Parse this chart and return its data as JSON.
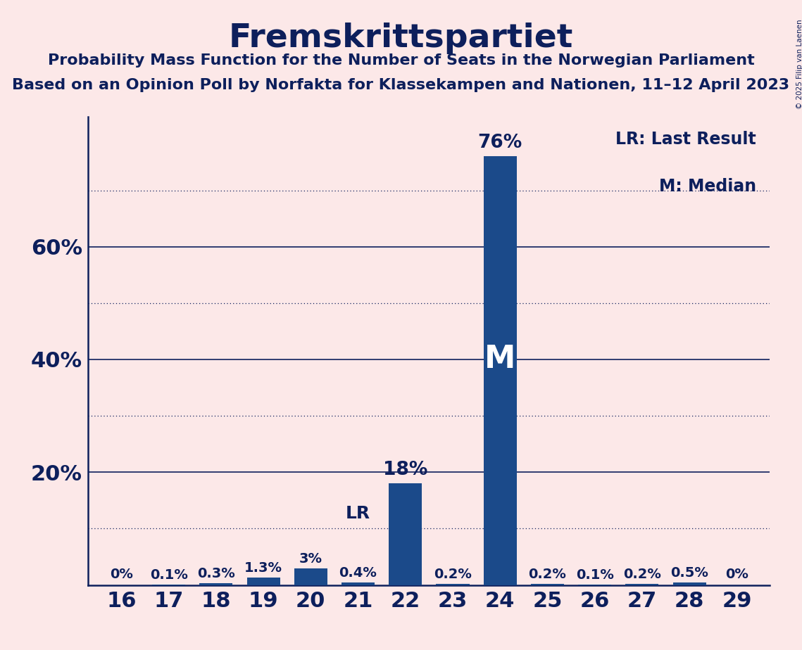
{
  "title": "Fremskrittspartiet",
  "subtitle1": "Probability Mass Function for the Number of Seats in the Norwegian Parliament",
  "subtitle2": "Based on an Opinion Poll by Norfakta for Klassekampen and Nationen, 11–12 April 2023",
  "copyright": "© 2025 Filip van Laenen",
  "seats": [
    16,
    17,
    18,
    19,
    20,
    21,
    22,
    23,
    24,
    25,
    26,
    27,
    28,
    29
  ],
  "probabilities": [
    0.0,
    0.1,
    0.3,
    1.3,
    3.0,
    0.4,
    18.0,
    0.2,
    76.0,
    0.2,
    0.1,
    0.2,
    0.5,
    0.0
  ],
  "labels": [
    "0%",
    "0.1%",
    "0.3%",
    "1.3%",
    "3%",
    "0.4%",
    "18%",
    "0.2%",
    "76%",
    "0.2%",
    "0.1%",
    "0.2%",
    "0.5%",
    "0%"
  ],
  "bar_color": "#1b4a8a",
  "background_color": "#fce8e8",
  "text_color": "#0d1f5c",
  "lr_seat": 21,
  "median_seat": 24,
  "ylim": [
    0,
    83
  ],
  "solid_gridlines": [
    20,
    40,
    60
  ],
  "dotted_gridlines": [
    10,
    30,
    50,
    70
  ],
  "legend_lr": "LR: Last Result",
  "legend_m": "M: Median"
}
